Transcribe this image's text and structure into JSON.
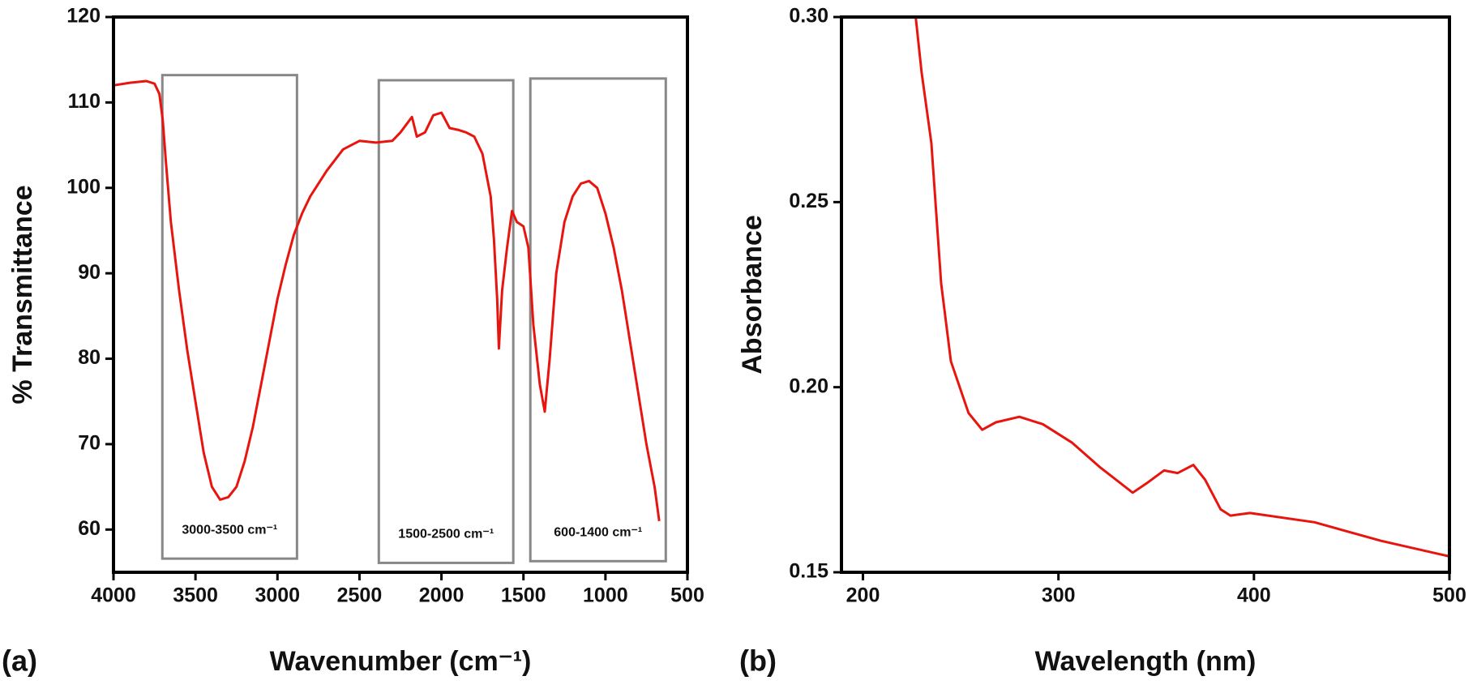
{
  "chart_data": [
    {
      "type": "line",
      "panel_label": "(a)",
      "xlabel": "Wavenumber (cm⁻¹)",
      "ylabel": "% Transmittance",
      "xlim": [
        4000,
        500
      ],
      "ylim": [
        55,
        120
      ],
      "xticks": [
        4000,
        3500,
        3000,
        2500,
        2000,
        1500,
        1000,
        500
      ],
      "yticks": [
        60,
        70,
        80,
        90,
        100,
        110,
        120
      ],
      "x": [
        4000,
        3900,
        3800,
        3750,
        3720,
        3700,
        3680,
        3650,
        3600,
        3550,
        3500,
        3450,
        3400,
        3350,
        3300,
        3250,
        3200,
        3150,
        3100,
        3050,
        3000,
        2950,
        2900,
        2850,
        2800,
        2700,
        2600,
        2500,
        2400,
        2300,
        2250,
        2180,
        2150,
        2100,
        2050,
        2000,
        1950,
        1900,
        1850,
        1800,
        1750,
        1700,
        1680,
        1660,
        1650,
        1630,
        1600,
        1570,
        1540,
        1500,
        1470,
        1440,
        1400,
        1370,
        1340,
        1300,
        1250,
        1200,
        1150,
        1100,
        1050,
        1000,
        950,
        900,
        850,
        800,
        750,
        700,
        672
      ],
      "series": [
        {
          "color": "#e8150f",
          "values": [
            112,
            112.3,
            112.5,
            112.2,
            111,
            108,
            103,
            96,
            88,
            81,
            75,
            69,
            65,
            63.5,
            63.8,
            65,
            68,
            72,
            77,
            82,
            87,
            91,
            94.5,
            97,
            99,
            102,
            104.5,
            105.5,
            105.3,
            105.5,
            106.5,
            108.3,
            106,
            106.5,
            108.5,
            108.8,
            107,
            106.8,
            106.5,
            106,
            104,
            99,
            94,
            87,
            81.2,
            88,
            93,
            97.3,
            96,
            95.5,
            93,
            84,
            77,
            73.8,
            80,
            90,
            96,
            99,
            100.5,
            100.8,
            100,
            97,
            93,
            88,
            82,
            76,
            70,
            65,
            61
          ]
        }
      ],
      "regions": [
        {
          "label": "3000-3500 cm⁻¹",
          "x": [
            3702,
            2881
          ],
          "y": [
            56.6,
            113.2
          ],
          "color": "#888888"
        },
        {
          "label": "1500-2500 cm⁻¹",
          "x": [
            2382,
            1562
          ],
          "y": [
            56.1,
            112.6
          ],
          "color": "#888888"
        },
        {
          "label": "600-1400 cm⁻¹",
          "x": [
            1458,
            632
          ],
          "y": [
            56.3,
            112.8
          ],
          "color": "#888888"
        }
      ]
    },
    {
      "type": "line",
      "panel_label": "(b)",
      "xlabel": "Wavelength (nm)",
      "ylabel": "Absorbance",
      "xlim": [
        189,
        500
      ],
      "ylim": [
        0.15,
        0.3
      ],
      "xticks": [
        200,
        300,
        400,
        500
      ],
      "yticks": [
        0.15,
        {
          "value": 0.2,
          "label": "0.20"
        },
        0.25,
        {
          "value": 0.3,
          "label": "0.30"
        }
      ],
      "x": [
        227,
        230,
        235,
        240,
        245,
        254,
        261,
        268,
        280,
        292,
        307,
        321,
        338,
        345,
        354,
        361,
        369,
        375,
        383,
        388,
        398,
        431,
        465,
        500
      ],
      "series": [
        {
          "color": "#e8150f",
          "values": [
            0.3,
            0.285,
            0.266,
            0.228,
            0.207,
            0.193,
            0.1885,
            0.1905,
            0.192,
            0.19,
            0.185,
            0.1785,
            0.1715,
            0.174,
            0.1775,
            0.1768,
            0.179,
            0.175,
            0.167,
            0.1653,
            0.166,
            0.1635,
            0.1585,
            0.1543
          ]
        }
      ]
    }
  ]
}
